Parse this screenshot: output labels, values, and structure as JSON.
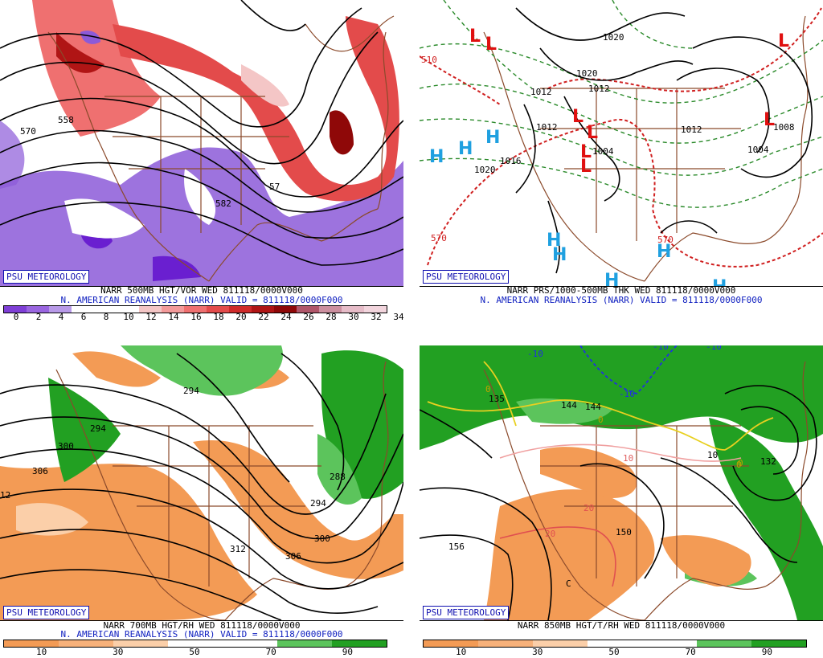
{
  "panels": [
    {
      "id": "vorticity",
      "badge": "PSU METEOROLOGY",
      "caption1": "NARR 500MB HGT/VOR WED 811118/0000V000",
      "caption2": "N. AMERICAN REANALYSIS (NARR) VALID = 811118/0000F000",
      "scale_colors": [
        "#7f3fd6",
        "#9a66e0",
        "#b89ae8",
        "#ffffff",
        "#ffffff",
        "#ffffff",
        "#f4c6c6",
        "#f39a9a",
        "#ef7070",
        "#e34b4b",
        "#cf2a2a",
        "#b01515",
        "#8f0808",
        "#b0566a",
        "#cc8f9f",
        "#e6bcc8",
        "#f2d5dd"
      ],
      "scale_labels": [
        "0",
        "2",
        "4",
        "6",
        "8",
        "10",
        "12",
        "14",
        "16",
        "18",
        "20",
        "22",
        "24",
        "26",
        "28",
        "30",
        "32",
        "34"
      ],
      "contour_labels": [
        "570",
        "558",
        "582",
        "57"
      ]
    },
    {
      "id": "pressure",
      "badge": "PSU METEOROLOGY",
      "caption1": "NARR PRS/1000-500MB THK WED 811118/0000V000",
      "caption2": "N. AMERICAN REANALYSIS (NARR) VALID = 811118/0000F000",
      "contour_labels": [
        "510",
        "1020",
        "1020",
        "1012",
        "1012",
        "1012",
        "1020",
        "1004",
        "1012",
        "1016",
        "570",
        "570",
        "1004",
        "1008"
      ],
      "highs": [
        "H",
        "H",
        "H",
        "H",
        "H",
        "H",
        "H",
        "H"
      ],
      "lows": [
        "L",
        "L",
        "L",
        "L",
        "L",
        "L",
        "L",
        "L"
      ]
    },
    {
      "id": "rh700",
      "badge": "PSU METEOROLOGY",
      "caption1": "NARR 700MB HGT/RH WED 811118/0000V000",
      "caption2": "N. AMERICAN REANALYSIS (NARR) VALID = 811118/0000F000",
      "scale_colors": [
        "#f39b55",
        "#f7b17a",
        "#fbcfa9",
        "#ffffff",
        "#ffffff",
        "#5cc45c",
        "#22a022"
      ],
      "scale_labels": [
        "10",
        "30",
        "50",
        "70",
        "90"
      ],
      "contour_labels": [
        "294",
        "294",
        "300",
        "306",
        "12",
        "288",
        "294",
        "312",
        "306",
        "300"
      ]
    },
    {
      "id": "t850",
      "badge": "PSU METEOROLOGY",
      "caption1": "NARR 850MB HGT/T/RH WED 811118/0000V000",
      "caption2": "",
      "scale_colors": [
        "#f39b55",
        "#f7b17a",
        "#fbcfa9",
        "#ffffff",
        "#ffffff",
        "#5cc45c",
        "#22a022"
      ],
      "scale_labels": [
        "10",
        "30",
        "50",
        "70",
        "90"
      ],
      "contour_labels": [
        "-10",
        "-10",
        "-10",
        "-10",
        "0",
        "0",
        "144",
        "0",
        "10",
        "10",
        "132",
        "20",
        "20",
        "150",
        "156",
        "0",
        "135",
        "144",
        "C"
      ]
    }
  ]
}
